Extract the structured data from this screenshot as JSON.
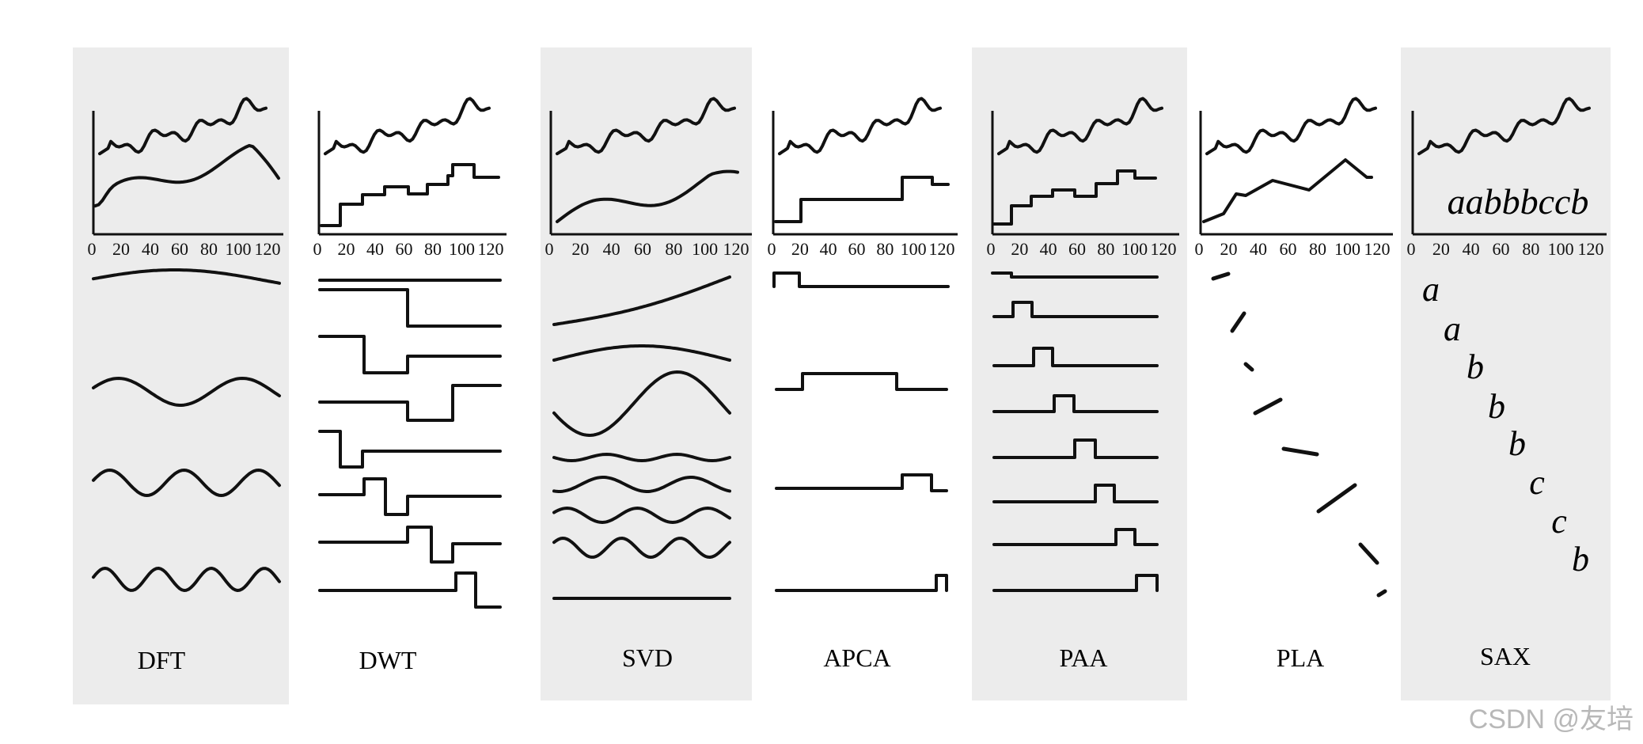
{
  "panels": [
    {
      "id": "dft",
      "label": "DFT",
      "shaded": true
    },
    {
      "id": "dwt",
      "label": "DWT",
      "shaded": false
    },
    {
      "id": "svd",
      "label": "SVD",
      "shaded": true
    },
    {
      "id": "apca",
      "label": "APCA",
      "shaded": false
    },
    {
      "id": "paa",
      "label": "PAA",
      "shaded": true
    },
    {
      "id": "pla",
      "label": "PLA",
      "shaded": false
    },
    {
      "id": "sax",
      "label": "SAX",
      "shaded": true
    }
  ],
  "x_ticks": [
    "0",
    "20",
    "40",
    "60",
    "80",
    "100",
    "120"
  ],
  "sax_word": "aabbbccb",
  "sax_symbols": [
    "a",
    "a",
    "b",
    "b",
    "b",
    "c",
    "c",
    "b"
  ],
  "watermark": "CSDN @友培",
  "colors": {
    "panel_shade": "#ececec",
    "ink": "#111111",
    "background": "#ffffff"
  }
}
